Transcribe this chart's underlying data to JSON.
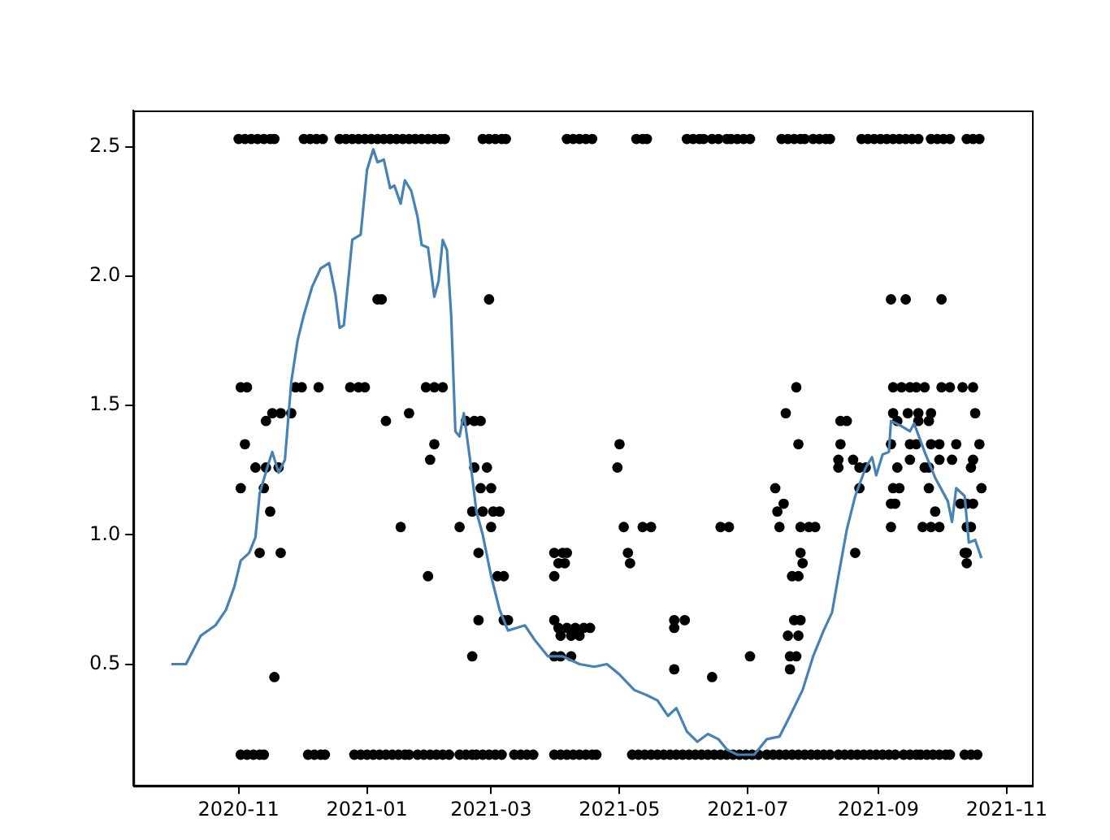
{
  "chart_data": {
    "type": "scatter",
    "xlim": [
      "2020-09-12",
      "2021-11-13"
    ],
    "xticks": [
      "2020-11",
      "2021-01",
      "2021-03",
      "2021-05",
      "2021-07",
      "2021-09",
      "2021-11"
    ],
    "ylim": [
      0.03,
      2.64
    ],
    "yticks": [
      0.5,
      {
        "value": 1,
        "label": "1.0"
      },
      1.5,
      {
        "value": 2,
        "label": "2.0"
      },
      2.5
    ],
    "grid": false,
    "legend": false,
    "marker": "circle",
    "series": [
      {
        "type": "line",
        "color": "#4682b4",
        "marker": "none",
        "line_style": "solid",
        "x": [
          "2020-09-30",
          "2020-10-07",
          "2020-10-14",
          "2020-10-21",
          "2020-10-26",
          "2020-10-30",
          "2020-11-02",
          "2020-11-06",
          "2020-11-09",
          "2020-11-11",
          "2020-11-15",
          "2020-11-17",
          "2020-11-20",
          "2020-11-23",
          "2020-11-26",
          "2020-11-29",
          "2020-12-02",
          "2020-12-06",
          "2020-12-10",
          "2020-12-14",
          "2020-12-17",
          "2020-12-19",
          "2020-12-21",
          "2020-12-25",
          "2020-12-29",
          "2021-01-01",
          "2021-01-04",
          "2021-01-06",
          "2021-01-09",
          "2021-01-12",
          "2021-01-14",
          "2021-01-17",
          "2021-01-19",
          "2021-01-22",
          "2021-01-25",
          "2021-01-27",
          "2021-01-30",
          "2021-02-02",
          "2021-02-04",
          "2021-02-06",
          "2021-02-08",
          "2021-02-10",
          "2021-02-12",
          "2021-02-14",
          "2021-02-16",
          "2021-02-19",
          "2021-02-22",
          "2021-02-25",
          "2021-03-01",
          "2021-03-05",
          "2021-03-09",
          "2021-03-13",
          "2021-03-17",
          "2021-03-22",
          "2021-03-28",
          "2021-04-04",
          "2021-04-12",
          "2021-04-19",
          "2021-04-25",
          "2021-05-01",
          "2021-05-08",
          "2021-05-14",
          "2021-05-19",
          "2021-05-24",
          "2021-05-28",
          "2021-06-02",
          "2021-06-07",
          "2021-06-12",
          "2021-06-17",
          "2021-06-21",
          "2021-06-26",
          "2021-07-04",
          "2021-07-10",
          "2021-07-16",
          "2021-07-21",
          "2021-07-27",
          "2021-08-01",
          "2021-08-06",
          "2021-08-10",
          "2021-08-13",
          "2021-08-17",
          "2021-08-21",
          "2021-08-26",
          "2021-08-29",
          "2021-08-31",
          "2021-09-03",
          "2021-09-06",
          "2021-09-07",
          "2021-09-12",
          "2021-09-16",
          "2021-09-18",
          "2021-09-23",
          "2021-09-28",
          "2021-10-04",
          "2021-10-06",
          "2021-10-08",
          "2021-10-12",
          "2021-10-14",
          "2021-10-17",
          "2021-10-20"
        ],
        "values": [
          0.5,
          0.5,
          0.61,
          0.65,
          0.71,
          0.8,
          0.9,
          0.93,
          0.99,
          1.16,
          1.27,
          1.32,
          1.24,
          1.29,
          1.59,
          1.75,
          1.85,
          1.96,
          2.03,
          2.05,
          1.93,
          1.8,
          1.81,
          2.14,
          2.16,
          2.41,
          2.49,
          2.44,
          2.45,
          2.34,
          2.35,
          2.28,
          2.37,
          2.33,
          2.23,
          2.12,
          2.11,
          1.92,
          1.98,
          2.14,
          2.1,
          1.85,
          1.4,
          1.38,
          1.47,
          1.29,
          1.09,
          1.0,
          0.84,
          0.71,
          0.63,
          0.64,
          0.65,
          0.59,
          0.53,
          0.53,
          0.5,
          0.49,
          0.5,
          0.46,
          0.4,
          0.38,
          0.36,
          0.3,
          0.33,
          0.24,
          0.2,
          0.23,
          0.21,
          0.17,
          0.15,
          0.15,
          0.21,
          0.22,
          0.3,
          0.4,
          0.53,
          0.63,
          0.7,
          0.84,
          1.02,
          1.15,
          1.26,
          1.3,
          1.23,
          1.31,
          1.32,
          1.44,
          1.42,
          1.4,
          1.43,
          1.32,
          1.22,
          1.13,
          1.05,
          1.18,
          1.15,
          0.97,
          0.98,
          0.91
        ]
      },
      {
        "type": "scatter",
        "color": "#000000",
        "x": [
          "2020-11-01",
          "2020-11-04",
          "2020-11-07",
          "2020-11-10",
          "2020-11-13",
          "2020-11-16",
          "2020-11-18",
          "2020-12-02",
          "2020-12-05",
          "2020-12-08",
          "2020-12-11",
          "2020-12-19",
          "2020-12-22",
          "2020-12-25",
          "2020-12-28",
          "2020-12-31",
          "2021-01-03",
          "2021-01-06",
          "2021-01-09",
          "2021-01-12",
          "2021-01-15",
          "2021-01-18",
          "2021-01-21",
          "2021-01-24",
          "2021-01-27",
          "2021-01-30",
          "2021-02-02",
          "2021-02-05",
          "2021-02-07",
          "2021-02-25",
          "2021-02-28",
          "2021-03-03",
          "2021-03-06",
          "2021-03-08",
          "2021-04-06",
          "2021-04-09",
          "2021-04-12",
          "2021-04-15",
          "2021-04-18",
          "2021-05-09",
          "2021-05-12",
          "2021-05-14",
          "2021-06-02",
          "2021-06-05",
          "2021-06-08",
          "2021-06-10",
          "2021-06-14",
          "2021-06-17",
          "2021-06-21",
          "2021-06-23",
          "2021-06-26",
          "2021-06-29",
          "2021-07-02",
          "2021-07-17",
          "2021-07-20",
          "2021-07-23",
          "2021-07-26",
          "2021-07-28",
          "2021-08-01",
          "2021-08-04",
          "2021-08-07",
          "2021-08-09",
          "2021-08-24",
          "2021-08-27",
          "2021-08-30",
          "2021-09-02",
          "2021-09-05",
          "2021-09-08",
          "2021-09-11",
          "2021-09-14",
          "2021-09-17",
          "2021-09-20",
          "2021-09-26",
          "2021-09-29",
          "2021-10-02",
          "2021-10-05",
          "2021-10-13",
          "2021-10-16",
          "2021-10-19"
        ],
        "values": [
          2.53,
          2.53,
          2.53,
          2.53,
          2.53,
          2.53,
          2.53,
          2.53,
          2.53,
          2.53,
          2.53,
          2.53,
          2.53,
          2.53,
          2.53,
          2.53,
          2.53,
          2.53,
          2.53,
          2.53,
          2.53,
          2.53,
          2.53,
          2.53,
          2.53,
          2.53,
          2.53,
          2.53,
          2.53,
          2.53,
          2.53,
          2.53,
          2.53,
          2.53,
          2.53,
          2.53,
          2.53,
          2.53,
          2.53,
          2.53,
          2.53,
          2.53,
          2.53,
          2.53,
          2.53,
          2.53,
          2.53,
          2.53,
          2.53,
          2.53,
          2.53,
          2.53,
          2.53,
          2.53,
          2.53,
          2.53,
          2.53,
          2.53,
          2.53,
          2.53,
          2.53,
          2.53,
          2.53,
          2.53,
          2.53,
          2.53,
          2.53,
          2.53,
          2.53,
          2.53,
          2.53,
          2.53,
          2.53,
          2.53,
          2.53,
          2.53,
          2.53,
          2.53,
          2.53
        ]
      },
      {
        "type": "scatter",
        "color": "#000000",
        "x": [
          "2020-11-02",
          "2020-11-05",
          "2020-11-08",
          "2020-11-11",
          "2020-11-13",
          "2020-12-04",
          "2020-12-07",
          "2020-12-10",
          "2020-12-12",
          "2020-12-26",
          "2020-12-29",
          "2021-01-01",
          "2021-01-04",
          "2021-01-07",
          "2021-01-10",
          "2021-01-13",
          "2021-01-16",
          "2021-01-19",
          "2021-01-21",
          "2021-01-25",
          "2021-01-28",
          "2021-01-31",
          "2021-02-03",
          "2021-02-06",
          "2021-02-09",
          "2021-02-14",
          "2021-02-17",
          "2021-02-20",
          "2021-02-22",
          "2021-02-25",
          "2021-02-28",
          "2021-03-03",
          "2021-03-06",
          "2021-03-12",
          "2021-03-15",
          "2021-03-18",
          "2021-03-21",
          "2021-03-31",
          "2021-04-03",
          "2021-04-06",
          "2021-04-09",
          "2021-04-12",
          "2021-04-15",
          "2021-04-18",
          "2021-04-20",
          "2021-05-07",
          "2021-05-10",
          "2021-05-13",
          "2021-05-16",
          "2021-05-19",
          "2021-05-22",
          "2021-05-25",
          "2021-05-28",
          "2021-05-31",
          "2021-06-03",
          "2021-06-06",
          "2021-06-09",
          "2021-06-12",
          "2021-06-15",
          "2021-06-18",
          "2021-06-21",
          "2021-06-24",
          "2021-06-27",
          "2021-06-30",
          "2021-07-03",
          "2021-07-06",
          "2021-07-10",
          "2021-07-13",
          "2021-07-16",
          "2021-07-19",
          "2021-07-22",
          "2021-07-25",
          "2021-07-28",
          "2021-07-31",
          "2021-08-03",
          "2021-08-06",
          "2021-08-09",
          "2021-08-13",
          "2021-08-16",
          "2021-08-19",
          "2021-08-22",
          "2021-08-25",
          "2021-08-28",
          "2021-08-31",
          "2021-09-03",
          "2021-09-06",
          "2021-09-09",
          "2021-09-13",
          "2021-09-16",
          "2021-09-19",
          "2021-09-21",
          "2021-09-24",
          "2021-09-27",
          "2021-09-30",
          "2021-10-03",
          "2021-10-05",
          "2021-10-12",
          "2021-10-15",
          "2021-10-18"
        ],
        "values": [
          0.15,
          0.15,
          0.15,
          0.15,
          0.15,
          0.15,
          0.15,
          0.15,
          0.15,
          0.15,
          0.15,
          0.15,
          0.15,
          0.15,
          0.15,
          0.15,
          0.15,
          0.15,
          0.15,
          0.15,
          0.15,
          0.15,
          0.15,
          0.15,
          0.15,
          0.15,
          0.15,
          0.15,
          0.15,
          0.15,
          0.15,
          0.15,
          0.15,
          0.15,
          0.15,
          0.15,
          0.15,
          0.15,
          0.15,
          0.15,
          0.15,
          0.15,
          0.15,
          0.15,
          0.15,
          0.15,
          0.15,
          0.15,
          0.15,
          0.15,
          0.15,
          0.15,
          0.15,
          0.15,
          0.15,
          0.15,
          0.15,
          0.15,
          0.15,
          0.15,
          0.15,
          0.15,
          0.15,
          0.15,
          0.15,
          0.15,
          0.15,
          0.15,
          0.15,
          0.15,
          0.15,
          0.15,
          0.15,
          0.15,
          0.15,
          0.15,
          0.15,
          0.15,
          0.15,
          0.15,
          0.15,
          0.15,
          0.15,
          0.15,
          0.15,
          0.15,
          0.15,
          0.15,
          0.15,
          0.15,
          0.15,
          0.15,
          0.15,
          0.15,
          0.15,
          0.15,
          0.15,
          0.15,
          0.15
        ]
      },
      {
        "type": "scatter",
        "color": "#000000",
        "x": [
          "2020-11-02",
          "2020-11-05",
          "2020-12-09",
          "2020-11-28",
          "2020-12-01",
          "2020-12-24",
          "2020-12-28",
          "2020-12-31",
          "2021-01-29",
          "2021-02-02",
          "2021-02-06",
          "2021-01-06",
          "2021-01-08",
          "2020-11-17",
          "2020-11-21",
          "2020-11-26",
          "2020-11-14",
          "2020-11-04",
          "2020-11-09",
          "2020-11-14",
          "2020-11-20",
          "2020-11-02",
          "2020-11-13",
          "2020-11-16",
          "2020-11-11",
          "2020-11-21",
          "2020-11-18",
          "2021-01-10",
          "2021-01-21",
          "2021-02-02",
          "2021-01-31",
          "2021-01-17",
          "2021-01-30",
          "2021-02-14",
          "2021-02-28",
          "2021-02-17",
          "2021-02-21",
          "2021-02-24",
          "2021-02-21",
          "2021-02-27",
          "2021-02-24",
          "2021-03-01",
          "2021-02-20",
          "2021-02-25",
          "2021-03-02",
          "2021-03-05",
          "2021-03-01",
          "2021-02-23",
          "2021-03-04",
          "2021-03-07",
          "2021-03-07",
          "2021-03-09",
          "2021-02-23",
          "2021-02-20",
          "2021-03-31",
          "2021-04-04",
          "2021-04-06",
          "2021-03-31",
          "2021-04-02",
          "2021-04-05",
          "2021-03-31",
          "2021-04-02",
          "2021-04-06",
          "2021-04-10",
          "2021-04-14",
          "2021-04-17",
          "2021-04-03",
          "2021-04-08",
          "2021-04-12",
          "2021-03-31",
          "2021-04-03",
          "2021-04-08",
          "2021-05-01",
          "2021-04-30",
          "2021-05-03",
          "2021-05-12",
          "2021-05-16",
          "2021-05-05",
          "2021-05-06",
          "2021-05-27",
          "2021-06-01",
          "2021-05-27",
          "2021-05-27",
          "2021-06-14",
          "2021-06-18",
          "2021-06-22",
          "2021-07-02",
          "2021-07-14",
          "2021-07-15",
          "2021-07-18",
          "2021-07-16",
          "2021-07-19",
          "2021-07-24",
          "2021-07-25",
          "2021-07-26",
          "2021-07-30",
          "2021-08-02",
          "2021-07-26",
          "2021-07-27",
          "2021-07-22",
          "2021-07-25",
          "2021-07-23",
          "2021-07-26",
          "2021-07-20",
          "2021-07-25",
          "2021-07-21",
          "2021-07-24",
          "2021-07-21",
          "2021-08-14",
          "2021-08-17",
          "2021-08-14",
          "2021-08-13",
          "2021-08-13",
          "2021-08-20",
          "2021-08-23",
          "2021-08-26",
          "2021-08-23",
          "2021-08-21",
          "2021-09-07",
          "2021-09-14",
          "2021-10-01",
          "2021-09-08",
          "2021-09-12",
          "2021-09-16",
          "2021-09-19",
          "2021-09-23",
          "2021-10-01",
          "2021-10-05",
          "2021-10-11",
          "2021-10-16",
          "2021-09-08",
          "2021-09-15",
          "2021-09-20",
          "2021-09-26",
          "2021-10-17",
          "2021-09-10",
          "2021-09-20",
          "2021-09-25",
          "2021-09-07",
          "2021-09-16",
          "2021-09-19",
          "2021-09-26",
          "2021-09-30",
          "2021-10-08",
          "2021-10-19",
          "2021-09-10",
          "2021-09-16",
          "2021-09-23",
          "2021-09-25",
          "2021-09-30",
          "2021-10-06",
          "2021-10-16",
          "2021-10-15",
          "2021-09-08",
          "2021-09-11",
          "2021-09-25",
          "2021-10-20",
          "2021-09-07",
          "2021-09-09",
          "2021-09-28",
          "2021-10-10",
          "2021-10-13",
          "2021-10-16",
          "2021-09-07",
          "2021-09-22",
          "2021-09-26",
          "2021-09-30",
          "2021-10-13",
          "2021-10-15",
          "2021-10-12",
          "2021-10-13",
          "2021-10-13"
        ],
        "values": [
          1.57,
          1.57,
          1.57,
          1.57,
          1.57,
          1.57,
          1.57,
          1.57,
          1.57,
          1.57,
          1.57,
          1.91,
          1.91,
          1.47,
          1.47,
          1.47,
          1.44,
          1.35,
          1.26,
          1.26,
          1.26,
          1.18,
          1.18,
          1.09,
          0.93,
          0.93,
          0.45,
          1.44,
          1.47,
          1.35,
          1.29,
          1.03,
          0.84,
          1.03,
          1.91,
          1.44,
          1.44,
          1.44,
          1.26,
          1.26,
          1.18,
          1.18,
          1.09,
          1.09,
          1.09,
          1.09,
          1.03,
          0.93,
          0.84,
          0.84,
          0.67,
          0.67,
          0.67,
          0.53,
          0.93,
          0.93,
          0.93,
          0.84,
          0.89,
          0.89,
          0.67,
          0.64,
          0.64,
          0.64,
          0.64,
          0.64,
          0.61,
          0.61,
          0.61,
          0.53,
          0.53,
          0.53,
          1.35,
          1.26,
          1.03,
          1.03,
          1.03,
          0.93,
          0.89,
          0.67,
          0.67,
          0.64,
          0.48,
          0.45,
          1.03,
          1.03,
          0.53,
          1.18,
          1.09,
          1.12,
          1.03,
          1.47,
          1.57,
          1.35,
          1.03,
          1.03,
          1.03,
          0.93,
          0.89,
          0.84,
          0.84,
          0.67,
          0.67,
          0.61,
          0.61,
          0.53,
          0.53,
          0.48,
          1.44,
          1.44,
          1.35,
          1.29,
          1.26,
          1.29,
          1.26,
          1.26,
          1.18,
          0.93,
          1.91,
          1.91,
          1.91,
          1.57,
          1.57,
          1.57,
          1.57,
          1.57,
          1.57,
          1.57,
          1.57,
          1.57,
          1.47,
          1.47,
          1.47,
          1.47,
          1.47,
          1.44,
          1.44,
          1.44,
          1.35,
          1.35,
          1.35,
          1.35,
          1.35,
          1.35,
          1.35,
          1.26,
          1.29,
          1.26,
          1.26,
          1.29,
          1.29,
          1.29,
          1.26,
          1.18,
          1.18,
          1.18,
          1.18,
          1.12,
          1.12,
          1.09,
          1.12,
          1.12,
          1.12,
          1.03,
          1.03,
          1.03,
          1.03,
          1.03,
          1.03,
          0.93,
          0.93,
          0.89
        ]
      }
    ]
  }
}
